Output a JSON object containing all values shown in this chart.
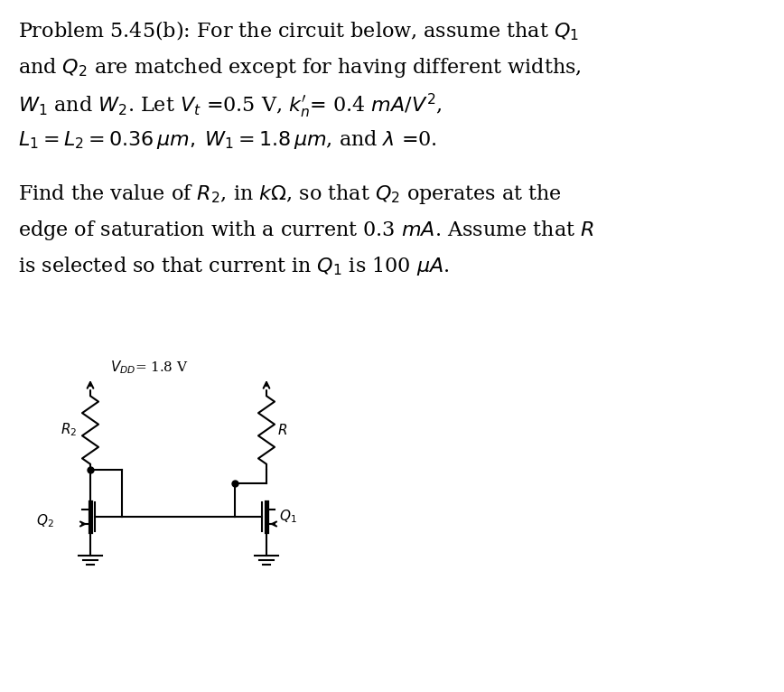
{
  "background_color": "#ffffff",
  "text_color": "#000000",
  "line1": "Problem 5.45(b): For the circuit below, assume that $\\mathit{Q}_1$",
  "line2": "and $\\mathit{Q}_2$ are matched except for having different widths,",
  "line3": "$\\mathit{W}_1$ and $\\mathit{W}_2$. Let $\\mathit{V}_t$ =0.5 V, $\\mathit{k^{\\prime}_n}$= 0.4 $\\mathit{mA/V^2}$,",
  "line4": "$\\mathit{L}_1 = \\mathit{L}_2 =0.36\\,\\mu m,\\; \\mathit{W}_1 = 1.8\\,\\mu m$, and $\\lambda$ =0.",
  "line5": "Find the value of $\\mathit{R}_2$, in $\\mathit{k}\\Omega$, so that $\\mathit{Q}_2$ operates at the",
  "line6": "edge of saturation with a current 0.3 $\\mathit{mA}$. Assume that $\\mathit{R}$",
  "line7": "is selected so that current in $\\mathit{Q}_1$ is 100 $\\mu A$.",
  "vdd_label": "$V_{DD}$= 1.8 V",
  "r2_label": "$R_2$",
  "r_label": "$R$",
  "q2_label": "$Q_2$",
  "q1_label": "$Q_1$",
  "fontsize_text": 16,
  "fontsize_circuit": 11
}
